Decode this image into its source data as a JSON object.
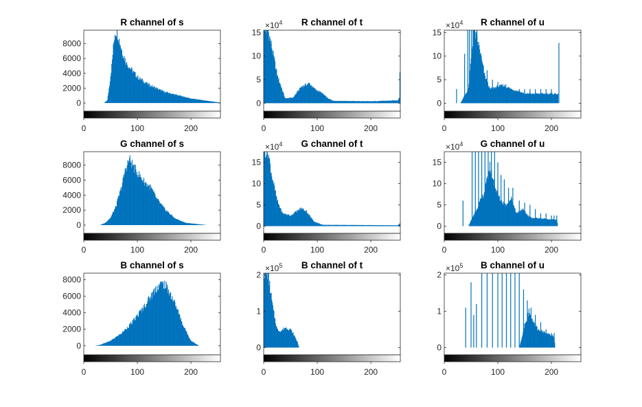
{
  "colors": {
    "bar": "#0072BD",
    "axis": "#262626"
  },
  "chart_data": [
    {
      "type": "bar",
      "title": "R channel of s",
      "channel": "R",
      "image": "s",
      "xlim": [
        0,
        255
      ],
      "ylim": [
        -1100,
        9800
      ],
      "yticks": [
        0,
        2000,
        4000,
        6000,
        8000
      ],
      "ytick_labels": [
        "0",
        "2000",
        "4000",
        "6000",
        "8000"
      ],
      "xticks": [
        0,
        100,
        200
      ],
      "xtick_labels": [
        "0",
        "100",
        "200"
      ],
      "y_exponent": "",
      "profile": [
        [
          0,
          0
        ],
        [
          38,
          0
        ],
        [
          44,
          400
        ],
        [
          48,
          2500
        ],
        [
          52,
          5000
        ],
        [
          56,
          8200
        ],
        [
          58,
          9500
        ],
        [
          62,
          9700
        ],
        [
          66,
          8500
        ],
        [
          72,
          6800
        ],
        [
          80,
          5300
        ],
        [
          100,
          3500
        ],
        [
          120,
          2500
        ],
        [
          150,
          1500
        ],
        [
          200,
          600
        ],
        [
          255,
          50
        ]
      ]
    },
    {
      "type": "bar",
      "title": "R channel of t",
      "channel": "R",
      "image": "t",
      "xlim": [
        0,
        255
      ],
      "ylim": [
        -1.7,
        15.5
      ],
      "yticks": [
        0,
        5,
        10,
        15
      ],
      "ytick_labels": [
        "0",
        "5",
        "10",
        "15"
      ],
      "xticks": [
        0,
        100,
        200
      ],
      "xtick_labels": [
        "0",
        "100",
        "200"
      ],
      "y_exponent": "4",
      "profile": [
        [
          0,
          15.5
        ],
        [
          8,
          15.5
        ],
        [
          15,
          12
        ],
        [
          25,
          6
        ],
        [
          40,
          1
        ],
        [
          55,
          1.2
        ],
        [
          70,
          3.5
        ],
        [
          85,
          4.2
        ],
        [
          95,
          3
        ],
        [
          108,
          2.2
        ],
        [
          120,
          1
        ],
        [
          130,
          0.5
        ],
        [
          200,
          0.4
        ],
        [
          250,
          0.6
        ],
        [
          253,
          1.2
        ],
        [
          255,
          12
        ]
      ]
    },
    {
      "type": "bar",
      "title": "R channel of u",
      "channel": "R",
      "image": "u",
      "xlim": [
        0,
        255
      ],
      "ylim": [
        -1.7,
        15.5
      ],
      "yticks": [
        0,
        5,
        10,
        15
      ],
      "ytick_labels": [
        "0",
        "5",
        "10",
        "15"
      ],
      "xticks": [
        0,
        100,
        200
      ],
      "xtick_labels": [
        "0",
        "100",
        "200"
      ],
      "y_exponent": "4",
      "profile": [
        [
          30,
          0
        ],
        [
          45,
          3
        ],
        [
          55,
          15.5
        ],
        [
          65,
          12
        ],
        [
          75,
          6
        ],
        [
          85,
          3
        ],
        [
          100,
          3.5
        ],
        [
          110,
          3.8
        ],
        [
          125,
          3
        ],
        [
          140,
          2.5
        ],
        [
          150,
          2
        ],
        [
          212,
          2
        ],
        [
          213,
          0
        ]
      ],
      "spikes": [
        [
          23,
          3
        ],
        [
          38,
          10.5
        ],
        [
          44,
          15.5
        ],
        [
          47,
          15.5
        ],
        [
          51,
          15.5
        ],
        [
          54,
          15.5
        ],
        [
          57,
          15.5
        ],
        [
          61,
          15.5
        ],
        [
          67,
          10.5
        ],
        [
          73,
          8
        ],
        [
          80,
          7
        ],
        [
          90,
          5
        ],
        [
          100,
          4.5
        ],
        [
          115,
          4
        ],
        [
          140,
          3
        ],
        [
          150,
          3
        ],
        [
          160,
          3
        ],
        [
          170,
          3
        ],
        [
          180,
          3
        ],
        [
          190,
          3
        ],
        [
          200,
          3
        ],
        [
          214,
          12.8
        ]
      ]
    },
    {
      "type": "bar",
      "title": "G channel of s",
      "channel": "G",
      "image": "s",
      "xlim": [
        0,
        255
      ],
      "ylim": [
        -1100,
        9800
      ],
      "yticks": [
        0,
        2000,
        4000,
        6000,
        8000
      ],
      "ytick_labels": [
        "0",
        "2000",
        "4000",
        "6000",
        "8000"
      ],
      "xticks": [
        0,
        100,
        200
      ],
      "xtick_labels": [
        "0",
        "100",
        "200"
      ],
      "y_exponent": "",
      "profile": [
        [
          0,
          0
        ],
        [
          30,
          0
        ],
        [
          40,
          300
        ],
        [
          50,
          1000
        ],
        [
          60,
          2500
        ],
        [
          70,
          5000
        ],
        [
          78,
          7500
        ],
        [
          85,
          8800
        ],
        [
          95,
          7500
        ],
        [
          105,
          6500
        ],
        [
          115,
          5600
        ],
        [
          125,
          5000
        ],
        [
          135,
          3600
        ],
        [
          150,
          2200
        ],
        [
          170,
          900
        ],
        [
          190,
          300
        ],
        [
          230,
          0
        ]
      ]
    },
    {
      "type": "bar",
      "title": "G channel of t",
      "channel": "G",
      "image": "t",
      "xlim": [
        0,
        255
      ],
      "ylim": [
        -1.7,
        17.5
      ],
      "yticks": [
        0,
        5,
        10,
        15
      ],
      "ytick_labels": [
        "0",
        "5",
        "10",
        "15"
      ],
      "xticks": [
        0,
        100,
        200
      ],
      "xtick_labels": [
        "0",
        "100",
        "200"
      ],
      "y_exponent": "4",
      "profile": [
        [
          0,
          17.5
        ],
        [
          8,
          17.5
        ],
        [
          15,
          12
        ],
        [
          25,
          6
        ],
        [
          35,
          3
        ],
        [
          50,
          2.5
        ],
        [
          62,
          3.5
        ],
        [
          70,
          4.2
        ],
        [
          80,
          3.5
        ],
        [
          88,
          2
        ],
        [
          95,
          1
        ],
        [
          110,
          0.3
        ],
        [
          250,
          0.2
        ],
        [
          253,
          0.5
        ],
        [
          255,
          0.8
        ]
      ]
    },
    {
      "type": "bar",
      "title": "G channel of u",
      "channel": "G",
      "image": "u",
      "xlim": [
        0,
        255
      ],
      "ylim": [
        -1.7,
        17.5
      ],
      "yticks": [
        0,
        5,
        10,
        15
      ],
      "ytick_labels": [
        "0",
        "5",
        "10",
        "15"
      ],
      "xticks": [
        0,
        100,
        200
      ],
      "xtick_labels": [
        "0",
        "100",
        "200"
      ],
      "y_exponent": "4",
      "profile": [
        [
          45,
          0
        ],
        [
          60,
          4
        ],
        [
          75,
          8
        ],
        [
          85,
          14
        ],
        [
          95,
          9
        ],
        [
          105,
          6
        ],
        [
          115,
          5
        ],
        [
          125,
          6.5
        ],
        [
          135,
          3
        ],
        [
          145,
          4
        ],
        [
          160,
          2
        ],
        [
          210,
          1.5
        ],
        [
          212,
          0
        ]
      ],
      "spikes": [
        [
          35,
          6
        ],
        [
          52,
          17.5
        ],
        [
          58,
          17.5
        ],
        [
          64,
          17.5
        ],
        [
          70,
          17.5
        ],
        [
          76,
          17.5
        ],
        [
          82,
          17.5
        ],
        [
          88,
          17.5
        ],
        [
          94,
          17.5
        ],
        [
          100,
          15
        ],
        [
          106,
          12
        ],
        [
          112,
          11
        ],
        [
          120,
          9
        ],
        [
          128,
          9
        ],
        [
          140,
          6
        ],
        [
          150,
          5.5
        ],
        [
          160,
          5
        ],
        [
          170,
          4
        ],
        [
          180,
          3
        ],
        [
          190,
          3
        ],
        [
          200,
          2.5
        ],
        [
          205,
          2.5
        ],
        [
          210,
          2.5
        ]
      ]
    },
    {
      "type": "bar",
      "title": "B channel of s",
      "channel": "B",
      "image": "s",
      "xlim": [
        0,
        255
      ],
      "ylim": [
        -1100,
        8800
      ],
      "yticks": [
        0,
        2000,
        4000,
        6000,
        8000
      ],
      "ytick_labels": [
        "0",
        "2000",
        "4000",
        "6000",
        "8000"
      ],
      "xticks": [
        0,
        100,
        200
      ],
      "xtick_labels": [
        "0",
        "100",
        "200"
      ],
      "y_exponent": "",
      "profile": [
        [
          0,
          0
        ],
        [
          20,
          0
        ],
        [
          30,
          100
        ],
        [
          50,
          600
        ],
        [
          70,
          1500
        ],
        [
          90,
          2800
        ],
        [
          110,
          4500
        ],
        [
          125,
          6000
        ],
        [
          135,
          7000
        ],
        [
          142,
          7400
        ],
        [
          150,
          7500
        ],
        [
          160,
          6500
        ],
        [
          172,
          4800
        ],
        [
          185,
          2500
        ],
        [
          200,
          600
        ],
        [
          215,
          0
        ]
      ]
    },
    {
      "type": "bar",
      "title": "B channel of t",
      "channel": "B",
      "image": "t",
      "xlim": [
        0,
        255
      ],
      "ylim": [
        -0.2,
        2.05
      ],
      "yticks": [
        0,
        1,
        2
      ],
      "ytick_labels": [
        "0",
        "1",
        "2"
      ],
      "xticks": [
        0,
        100,
        200
      ],
      "xtick_labels": [
        "0",
        "100",
        "200"
      ],
      "y_exponent": "5",
      "profile": [
        [
          0,
          2.05
        ],
        [
          8,
          2.05
        ],
        [
          12,
          1.6
        ],
        [
          18,
          1.0
        ],
        [
          25,
          0.5
        ],
        [
          32,
          0.45
        ],
        [
          40,
          0.55
        ],
        [
          50,
          0.5
        ],
        [
          58,
          0.3
        ],
        [
          63,
          0.15
        ],
        [
          66,
          0
        ]
      ]
    },
    {
      "type": "bar",
      "title": "B channel of u",
      "channel": "B",
      "image": "u",
      "xlim": [
        0,
        255
      ],
      "ylim": [
        -0.2,
        2.05
      ],
      "yticks": [
        0,
        1,
        2
      ],
      "ytick_labels": [
        "0",
        "1",
        "2"
      ],
      "xticks": [
        0,
        100,
        200
      ],
      "xtick_labels": [
        "0",
        "100",
        "200"
      ],
      "y_exponent": "5",
      "profile": [
        [
          140,
          0
        ],
        [
          150,
          0.6
        ],
        [
          158,
          1.0
        ],
        [
          165,
          0.7
        ],
        [
          175,
          0.5
        ],
        [
          190,
          0.4
        ],
        [
          205,
          0.3
        ],
        [
          207,
          0
        ]
      ],
      "spikes": [
        [
          40,
          1.1
        ],
        [
          50,
          1.8
        ],
        [
          55,
          0.9
        ],
        [
          60,
          1.2
        ],
        [
          70,
          2.05
        ],
        [
          80,
          2.05
        ],
        [
          90,
          2.05
        ],
        [
          100,
          2.05
        ],
        [
          108,
          2.05
        ],
        [
          116,
          2.05
        ],
        [
          124,
          2.05
        ],
        [
          132,
          2.05
        ],
        [
          140,
          2.05
        ],
        [
          148,
          1.6
        ],
        [
          155,
          1.3
        ],
        [
          162,
          1.1
        ],
        [
          170,
          0.9
        ],
        [
          180,
          0.7
        ],
        [
          190,
          0.5
        ],
        [
          200,
          0.4
        ],
        [
          205,
          0.4
        ]
      ]
    }
  ]
}
